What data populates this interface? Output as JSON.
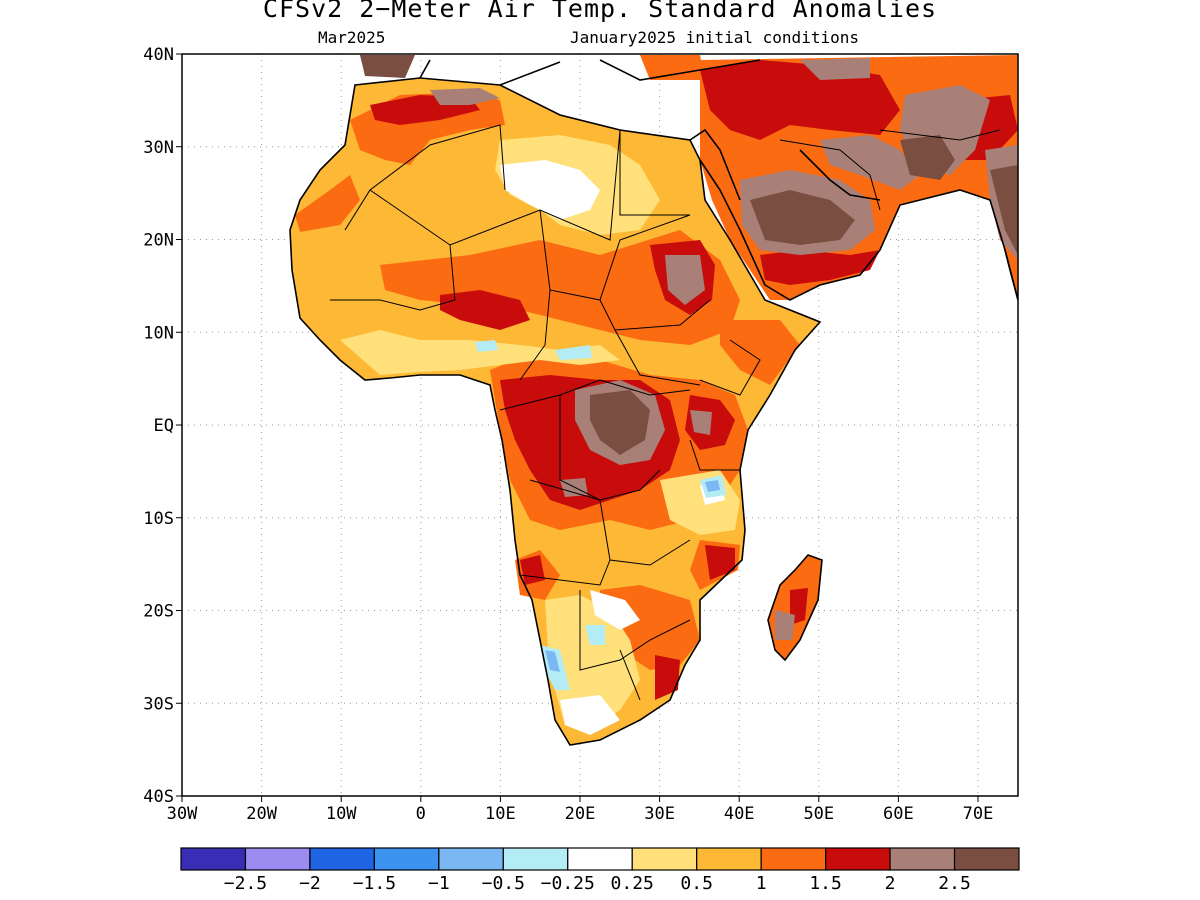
{
  "title": "CFSv2 2−Meter Air Temp. Standard Anomalies",
  "subtitle_left": "Mar2025",
  "subtitle_right": "January2025 initial conditions",
  "lat_labels": [
    "40N",
    "30N",
    "20N",
    "10N",
    "EQ",
    "10S",
    "20S",
    "30S",
    "40S"
  ],
  "lon_labels": [
    "30W",
    "20W",
    "10W",
    "0",
    "10E",
    "20E",
    "30E",
    "40E",
    "50E",
    "60E",
    "70E"
  ],
  "colorbar": {
    "colors": [
      "#3a2db5",
      "#9c8cf2",
      "#1f64e3",
      "#3d93f0",
      "#7bb7f3",
      "#b4ecf6",
      "#ffffff",
      "#ffe07a",
      "#fdb835",
      "#fb6b12",
      "#c80b0b",
      "#a98077",
      "#7a4f42"
    ],
    "labels": [
      "−2.5",
      "−2",
      "−1.5",
      "−1",
      "−0.5",
      "−0.25",
      "0.25",
      "0.5",
      "1",
      "1.5",
      "2",
      "2.5"
    ]
  }
}
